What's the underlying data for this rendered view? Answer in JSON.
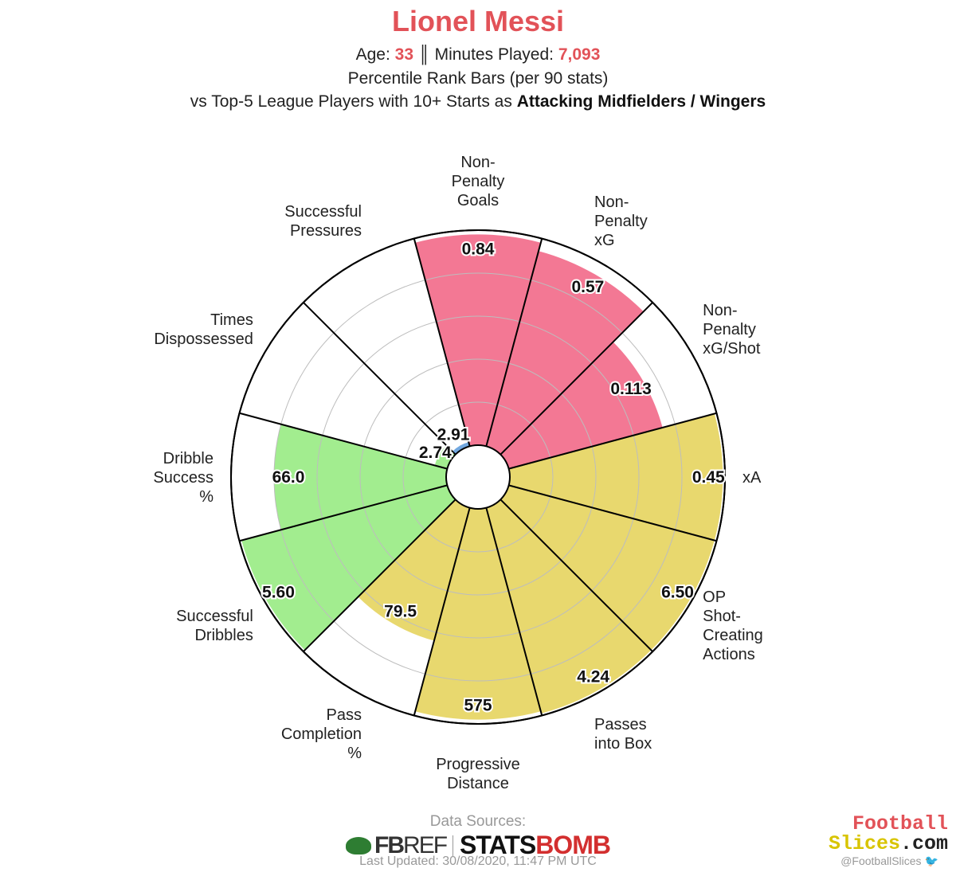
{
  "header": {
    "title": "Lionel Messi",
    "age_label": "Age: ",
    "age_value": "33",
    "separator": " ║ ",
    "minutes_label": "Minutes Played: ",
    "minutes_value": "7,093",
    "line2": "Percentile Rank Bars (per 90 stats)",
    "line3_prefix": "vs Top-5 League Players with 10+ Starts as ",
    "line3_bold": "Attacking Midfielders / Wingers"
  },
  "colors": {
    "title": "#e25258",
    "attacking": "#f37894",
    "possession": "#e8d86e",
    "dribbling": "#a2ed8f",
    "defending": "#72a8e0"
  },
  "chart_data": {
    "type": "polar-bar",
    "center_hole": true,
    "slices": [
      {
        "label": "Non-\nPenalty\nGoals",
        "value_label": "0.84",
        "percentile": 0.98,
        "group": "attacking"
      },
      {
        "label": "Non-\nPenalty\nxG",
        "value_label": "0.57",
        "percentile": 0.94,
        "group": "attacking"
      },
      {
        "label": "Non-\nPenalty\nxG/Shot",
        "value_label": "0.113",
        "percentile": 0.74,
        "group": "attacking"
      },
      {
        "label": "xA",
        "value_label": "0.45",
        "percentile": 0.99,
        "group": "possession"
      },
      {
        "label": "OP\nShot-\nCreating\nActions",
        "value_label": "6.50",
        "percentile": 0.99,
        "group": "possession"
      },
      {
        "label": "Passes\ninto Box",
        "value_label": "4.24",
        "percentile": 0.99,
        "group": "possession"
      },
      {
        "label": "Progressive\nDistance",
        "value_label": "575",
        "percentile": 0.98,
        "group": "possession"
      },
      {
        "label": "Pass\nCompletion\n%",
        "value_label": "79.5",
        "percentile": 0.64,
        "group": "possession"
      },
      {
        "label": "Successful\nDribbles",
        "value_label": "5.60",
        "percentile": 0.99,
        "group": "dribbling"
      },
      {
        "label": "Dribble\nSuccess\n%",
        "value_label": "66.0",
        "percentile": 0.8,
        "group": "dribbling"
      },
      {
        "label": "Times\nDispossessed",
        "value_label": "2.74",
        "percentile": 0.06,
        "group": "dribbling"
      },
      {
        "label": "Successful\nPressures",
        "value_label": "2.91",
        "percentile": 0.02,
        "group": "defending"
      }
    ]
  },
  "footer": {
    "sources_title": "Data Sources:",
    "fbref_fb": "FB",
    "fbref_ref": "REF",
    "statsbomb_stats": "STATS",
    "statsbomb_bomb": "BOMB",
    "updated": "Last Updated: 30/08/2020, 11:47 PM UTC"
  },
  "brand": {
    "line1": "Football",
    "line2": "Slices",
    "line2_suffix": ".com",
    "handle": "@FootballSlices",
    "twitter_icon": "twitter-bird-icon"
  }
}
